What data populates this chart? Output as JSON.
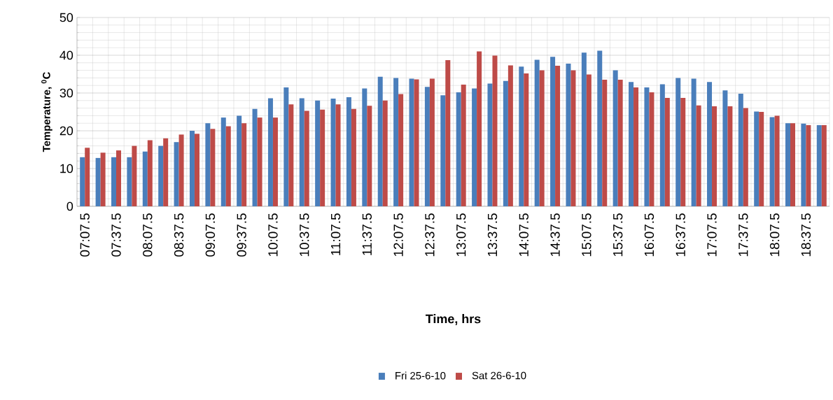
{
  "chart_data": {
    "type": "bar",
    "xlabel": "Time, hrs",
    "ylabel": "Temperature, $^{0}$C",
    "categories": [
      "07:07.5",
      null,
      "07:37.5",
      null,
      "08:07.5",
      null,
      "08:37.5",
      null,
      "09:07.5",
      null,
      "09:37.5",
      null,
      "10:07.5",
      null,
      "10:37.5",
      null,
      "11:07.5",
      null,
      "11:37.5",
      null,
      "12:07.5",
      null,
      "12:37.5",
      null,
      "13:07.5",
      null,
      "13:37.5",
      null,
      "14:07.5",
      null,
      "14:37.5",
      null,
      "15:07.5",
      null,
      "15:37.5",
      null,
      "16:07.5",
      null,
      "16:37.5",
      null,
      "17:07.5",
      null,
      "17:37.5",
      null,
      "18:07.5",
      null,
      "18:37.5",
      null
    ],
    "series": [
      {
        "name": "Fri 25-6-10",
        "color": "#4a7ebb",
        "values": [
          13,
          12.8,
          13,
          13,
          14.5,
          16,
          17,
          20,
          22,
          23.5,
          24,
          25.8,
          28.6,
          31.5,
          28.6,
          28,
          28.5,
          28.9,
          31.2,
          34.3,
          34,
          33.8,
          31.6,
          29.4,
          30.2,
          31.2,
          32.5,
          33.2,
          37,
          38.8,
          39.6,
          37.8,
          40.7,
          41.2,
          36,
          32.9,
          31.5,
          32.3,
          34,
          33.8,
          32.9,
          30.7,
          29.8,
          25.1,
          23.6,
          22,
          21.9,
          21.5
        ]
      },
      {
        "name": "Sat 26-6-10",
        "color": "#be4b48",
        "values": [
          15.5,
          14.2,
          14.8,
          16,
          17.5,
          18,
          19,
          19.2,
          20.5,
          21.2,
          22,
          23.5,
          23.5,
          27,
          25.3,
          25.6,
          27,
          25.8,
          26.6,
          28,
          29.7,
          33.6,
          33.8,
          38.7,
          32.2,
          41,
          39.9,
          37.3,
          35.2,
          36,
          37.2,
          36,
          34.9,
          33.5,
          33.5,
          31.5,
          30.2,
          28.7,
          28.7,
          26.7,
          26.5,
          26.5,
          26,
          25,
          24,
          22,
          21.5,
          21.5
        ]
      }
    ],
    "ylim": [
      0,
      50
    ],
    "yticks": [
      0,
      10,
      20,
      30,
      40,
      50
    ],
    "grid": true,
    "legend": "bottom"
  }
}
